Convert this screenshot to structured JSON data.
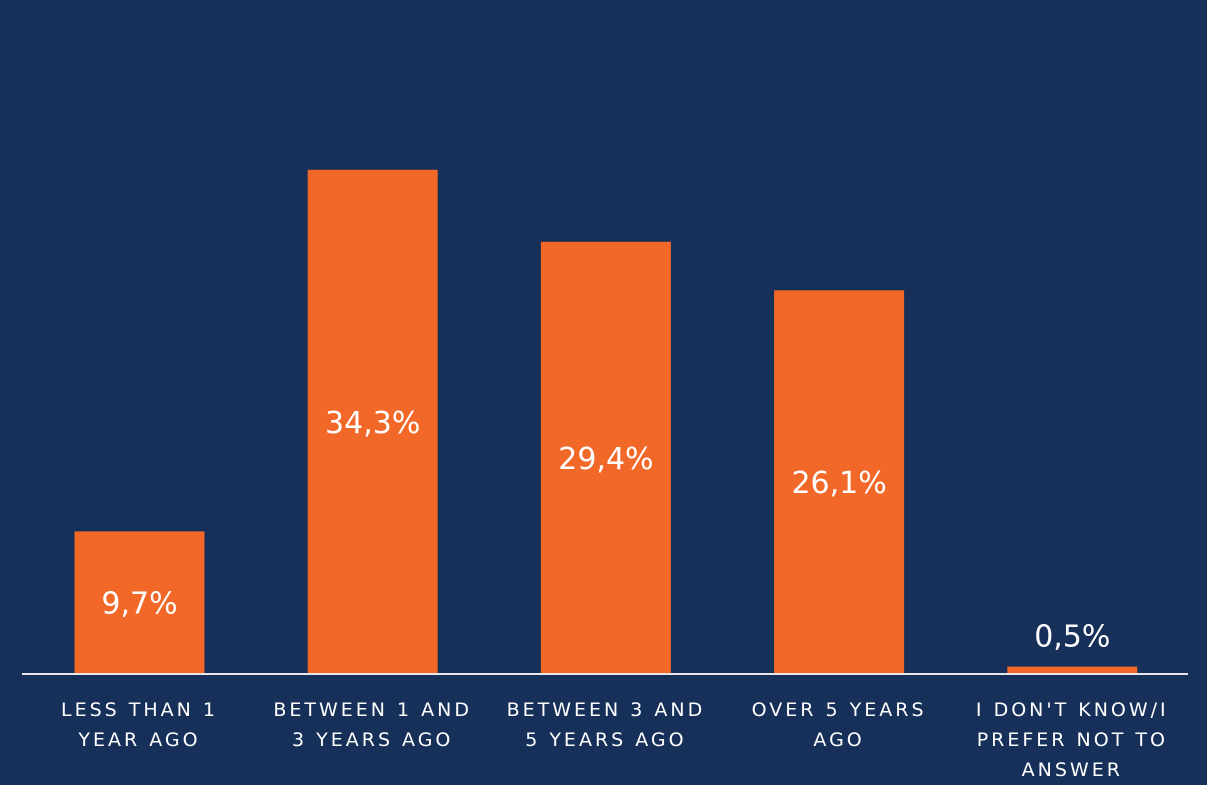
{
  "chart_data": {
    "type": "bar",
    "categories": [
      [
        "LESS THAN 1",
        "YEAR AGO"
      ],
      [
        "BETWEEN 1 AND",
        "3 YEARS AGO"
      ],
      [
        "BETWEEN 3 AND",
        "5 YEARS AGO"
      ],
      [
        "OVER 5 YEARS",
        "AGO"
      ],
      [
        "I DON'T KNOW/I",
        "PREFER NOT TO",
        "ANSWER"
      ]
    ],
    "values": [
      9.7,
      34.3,
      29.4,
      26.1,
      0.5
    ],
    "value_labels": [
      "9,7%",
      "34,3%",
      "29,4%",
      "26,1%",
      "0,5%"
    ],
    "ylim": [
      0,
      40
    ],
    "grid": false,
    "legend": "none"
  },
  "colors": {
    "background": "#17305a",
    "bar": "#f26828",
    "axis": "#e8e8e8",
    "text": "#ffffff"
  }
}
